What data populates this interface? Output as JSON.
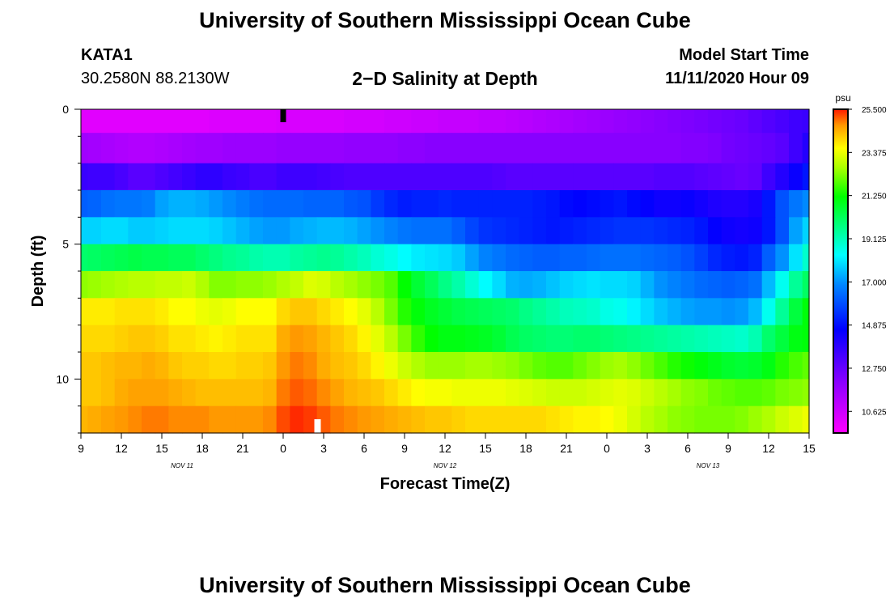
{
  "header": {
    "title": "University of Southern Mississippi Ocean Cube",
    "station_id": "KATA1",
    "station_coords": "30.2580N 88.2130W",
    "plot_title": "2−D Salinity at Depth",
    "model_start_label": "Model Start Time",
    "model_start_value": "11/11/2020 Hour 09"
  },
  "footer": {
    "title": "University of Southern Mississippi Ocean Cube"
  },
  "chart_data": {
    "type": "heatmap",
    "title": "2−D Salinity at Depth",
    "xlabel": "Forecast Time(Z)",
    "ylabel": "Depth (ft)",
    "x_tick_labels": [
      "9",
      "12",
      "15",
      "18",
      "21",
      "0",
      "3",
      "6",
      "9",
      "12",
      "15",
      "18",
      "21",
      "0",
      "3",
      "6",
      "9",
      "12",
      "15"
    ],
    "x_date_labels": [
      {
        "label": "NOV  11",
        "tick_index": 2.5
      },
      {
        "label": "NOV  12",
        "tick_index": 9
      },
      {
        "label": "NOV  13",
        "tick_index": 15.5
      }
    ],
    "y_tick_labels": [
      {
        "label": "0",
        "depth": 0
      },
      {
        "label": "5",
        "depth": 5
      },
      {
        "label": "10",
        "depth": 10
      }
    ],
    "ylim_ft": [
      0,
      12
    ],
    "colorbar": {
      "unit": "psu",
      "min": 9.56,
      "max": 25.5,
      "tick_labels": [
        "25.500",
        "23.375",
        "21.250",
        "19.125",
        "17.000",
        "14.875",
        "12.750",
        "10.625"
      ],
      "tick_values": [
        25.5,
        23.375,
        21.25,
        19.125,
        17.0,
        14.875,
        12.75,
        10.625
      ]
    },
    "time_axis": [
      "9",
      "10",
      "11",
      "12",
      "13",
      "14",
      "15",
      "16",
      "17",
      "18",
      "19",
      "20",
      "21",
      "22",
      "23",
      "0",
      "1",
      "2",
      "3",
      "4",
      "5",
      "6",
      "7",
      "8",
      "9",
      "10",
      "11",
      "12",
      "13",
      "14",
      "15",
      "16",
      "17",
      "18",
      "19",
      "20",
      "21",
      "22",
      "23",
      "0",
      "1",
      "2",
      "3",
      "4",
      "5",
      "6",
      "7",
      "8",
      "9",
      "10",
      "11",
      "12",
      "13",
      "14",
      "15"
    ],
    "depth_layers_ft": [
      0.25,
      1.5,
      2.5,
      3.5,
      4.5,
      5.5,
      6.5,
      7.5,
      8.5,
      9.5,
      10.5,
      11.5
    ],
    "layer_salinity_psu": [
      [
        10.2,
        10.2,
        10.2,
        10.2,
        10.2,
        10.2,
        10.2,
        10.2,
        10.2,
        10.2,
        10.3,
        10.3,
        10.3,
        10.3,
        10.3,
        10.4,
        10.4,
        10.4,
        10.4,
        10.4,
        10.5,
        10.5,
        10.5,
        10.6,
        10.6,
        10.7,
        10.7,
        10.8,
        10.8,
        10.8,
        10.9,
        10.9,
        11.0,
        11.1,
        11.2,
        11.3,
        11.4,
        11.5,
        11.6,
        11.7,
        11.8,
        11.9,
        12.0,
        12.1,
        12.2,
        12.3,
        12.4,
        12.5,
        12.6,
        12.7,
        12.9,
        13.1,
        13.3,
        13.5,
        13.6
      ],
      [
        11.6,
        11.5,
        11.4,
        11.3,
        11.2,
        11.2,
        11.3,
        11.4,
        11.5,
        11.6,
        11.6,
        11.7,
        11.7,
        11.7,
        11.7,
        11.8,
        11.8,
        11.8,
        11.8,
        11.8,
        11.9,
        11.9,
        11.9,
        11.9,
        12.0,
        12.0,
        12.1,
        12.1,
        12.1,
        12.1,
        12.1,
        12.1,
        12.1,
        12.1,
        12.1,
        12.1,
        12.1,
        12.1,
        12.1,
        12.1,
        12.1,
        12.1,
        12.1,
        12.1,
        12.1,
        12.2,
        12.2,
        12.3,
        12.5,
        12.6,
        12.7,
        12.8,
        13.0,
        13.5,
        14.0
      ],
      [
        13.6,
        13.5,
        13.5,
        13.3,
        13.0,
        13.0,
        13.2,
        13.4,
        13.6,
        13.8,
        13.8,
        13.6,
        13.5,
        13.3,
        13.3,
        13.5,
        13.5,
        13.5,
        13.4,
        13.3,
        13.2,
        13.2,
        13.2,
        13.2,
        13.2,
        13.2,
        13.2,
        13.2,
        13.2,
        13.2,
        13.2,
        13.1,
        13.0,
        13.0,
        13.0,
        13.0,
        13.0,
        13.0,
        13.0,
        13.0,
        13.0,
        13.0,
        13.0,
        13.1,
        13.1,
        13.1,
        13.0,
        12.9,
        12.8,
        12.7,
        12.8,
        13.5,
        14.0,
        14.5,
        15.0
      ],
      [
        16.2,
        16.3,
        16.5,
        16.6,
        16.6,
        16.7,
        17.2,
        17.4,
        17.4,
        17.3,
        17.1,
        16.9,
        16.7,
        16.5,
        16.4,
        16.4,
        16.4,
        16.3,
        16.3,
        16.3,
        16.1,
        16.0,
        15.6,
        15.3,
        15.1,
        15.2,
        15.2,
        15.3,
        15.2,
        15.2,
        15.2,
        15.2,
        15.2,
        15.2,
        15.1,
        15.0,
        14.8,
        14.7,
        14.8,
        14.9,
        15.0,
        14.8,
        14.6,
        14.4,
        14.4,
        14.5,
        14.3,
        14.1,
        14.0,
        14.0,
        14.2,
        15.0,
        16.0,
        16.6,
        16.9
      ],
      [
        17.8,
        17.8,
        17.9,
        17.9,
        17.7,
        17.7,
        17.8,
        17.9,
        17.9,
        17.9,
        17.8,
        17.6,
        17.4,
        17.2,
        17.1,
        17.1,
        17.3,
        17.4,
        17.5,
        17.5,
        17.4,
        17.2,
        17.0,
        16.8,
        16.6,
        16.5,
        16.5,
        16.5,
        16.2,
        15.8,
        15.5,
        15.4,
        15.3,
        15.2,
        15.1,
        15.0,
        15.1,
        15.2,
        15.3,
        15.4,
        15.5,
        15.5,
        15.5,
        15.4,
        15.3,
        15.2,
        15.0,
        14.6,
        14.4,
        14.3,
        14.4,
        15.0,
        16.0,
        17.2,
        17.8
      ],
      [
        20.0,
        20.1,
        20.2,
        20.3,
        20.4,
        20.3,
        20.3,
        20.2,
        20.2,
        20.0,
        19.8,
        19.6,
        19.5,
        19.3,
        19.2,
        19.2,
        19.4,
        19.5,
        19.6,
        19.5,
        19.3,
        19.1,
        18.8,
        18.6,
        18.3,
        18.1,
        18.0,
        17.9,
        17.7,
        17.2,
        16.8,
        16.6,
        16.4,
        16.3,
        16.2,
        16.2,
        16.3,
        16.3,
        16.4,
        16.5,
        16.5,
        16.5,
        16.4,
        16.3,
        16.2,
        16.0,
        15.7,
        15.3,
        15.1,
        15.0,
        15.2,
        16.2,
        17.0,
        18.0,
        18.9
      ],
      [
        22.4,
        22.5,
        22.6,
        22.7,
        22.8,
        22.8,
        22.9,
        22.9,
        23.0,
        22.7,
        22.3,
        22.3,
        22.4,
        22.4,
        22.5,
        22.7,
        22.9,
        23.2,
        23.1,
        22.8,
        22.6,
        22.4,
        22.2,
        21.9,
        21.2,
        20.6,
        20.2,
        19.7,
        19.3,
        18.8,
        18.3,
        17.9,
        17.4,
        17.3,
        17.4,
        17.6,
        17.8,
        17.9,
        18.0,
        17.9,
        17.9,
        17.8,
        17.4,
        17.0,
        16.8,
        16.6,
        16.4,
        16.3,
        16.2,
        16.3,
        16.5,
        17.5,
        18.5,
        19.5,
        20.1
      ],
      [
        23.8,
        23.8,
        23.8,
        23.9,
        23.9,
        23.9,
        23.8,
        23.6,
        23.6,
        23.4,
        23.3,
        23.4,
        23.6,
        23.6,
        23.6,
        24.0,
        24.2,
        24.2,
        24.0,
        23.8,
        23.6,
        23.3,
        22.8,
        22.2,
        21.5,
        21.1,
        20.8,
        20.6,
        20.4,
        20.3,
        20.2,
        20.1,
        20.0,
        19.7,
        19.5,
        19.3,
        19.1,
        19.0,
        18.9,
        18.6,
        18.5,
        18.2,
        17.9,
        17.6,
        17.4,
        17.2,
        17.1,
        17.1,
        17.0,
        17.1,
        17.5,
        18.5,
        19.5,
        20.5,
        21.1
      ],
      [
        24.0,
        24.0,
        24.0,
        24.1,
        24.2,
        24.2,
        24.1,
        23.9,
        23.9,
        23.8,
        23.7,
        23.8,
        23.9,
        23.9,
        23.9,
        24.5,
        24.7,
        24.6,
        24.4,
        24.2,
        24.0,
        23.7,
        23.3,
        22.8,
        22.2,
        21.6,
        21.2,
        21.0,
        21.0,
        20.9,
        20.8,
        20.6,
        20.3,
        20.1,
        20.0,
        19.9,
        19.9,
        20.0,
        20.0,
        19.9,
        19.8,
        19.7,
        19.6,
        19.5,
        19.4,
        19.3,
        19.2,
        19.1,
        19.0,
        18.9,
        19.2,
        20.0,
        20.5,
        21.0,
        21.1
      ],
      [
        24.2,
        24.2,
        24.3,
        24.4,
        24.4,
        24.5,
        24.4,
        24.2,
        24.1,
        24.1,
        24.0,
        24.0,
        24.1,
        24.1,
        24.2,
        24.7,
        24.9,
        24.8,
        24.5,
        24.3,
        24.2,
        24.0,
        23.7,
        23.4,
        23.0,
        22.7,
        22.5,
        22.5,
        22.5,
        22.6,
        22.6,
        22.5,
        22.4,
        22.2,
        22.0,
        21.9,
        21.9,
        22.1,
        22.3,
        22.5,
        22.6,
        22.4,
        22.1,
        21.8,
        21.5,
        21.3,
        21.1,
        20.9,
        20.7,
        20.6,
        20.7,
        21.0,
        21.5,
        21.8,
        22.0
      ],
      [
        24.2,
        24.2,
        24.3,
        24.5,
        24.6,
        24.6,
        24.6,
        24.5,
        24.4,
        24.3,
        24.3,
        24.3,
        24.3,
        24.3,
        24.4,
        24.9,
        25.1,
        25.0,
        24.8,
        24.6,
        24.4,
        24.3,
        24.2,
        24.0,
        23.8,
        23.6,
        23.5,
        23.5,
        23.4,
        23.4,
        23.4,
        23.4,
        23.3,
        23.2,
        23.1,
        23.0,
        23.0,
        23.0,
        23.1,
        23.2,
        23.3,
        23.2,
        23.0,
        22.8,
        22.6,
        22.4,
        22.3,
        22.1,
        22.0,
        21.9,
        21.9,
        22.0,
        22.2,
        22.3,
        22.4
      ],
      [
        24.4,
        24.5,
        24.6,
        24.7,
        24.8,
        24.9,
        24.9,
        24.8,
        24.8,
        24.8,
        24.7,
        24.7,
        24.7,
        24.7,
        24.8,
        25.2,
        25.4,
        25.3,
        25.1,
        24.9,
        24.8,
        24.7,
        24.6,
        24.5,
        24.4,
        24.3,
        24.2,
        24.2,
        24.1,
        24.0,
        24.0,
        24.0,
        24.0,
        24.0,
        24.0,
        23.9,
        23.8,
        23.7,
        23.7,
        23.6,
        23.4,
        23.1,
        22.8,
        22.6,
        22.4,
        22.3,
        22.2,
        22.2,
        22.2,
        22.3,
        22.5,
        22.7,
        23.0,
        23.2,
        23.4
      ]
    ],
    "time_markers": [
      {
        "name": "model-start-marker",
        "tick_index": 5,
        "color": "#000000"
      },
      {
        "name": "current-time-marker",
        "tick_index": 5.85,
        "color": "#ffffff"
      }
    ]
  }
}
